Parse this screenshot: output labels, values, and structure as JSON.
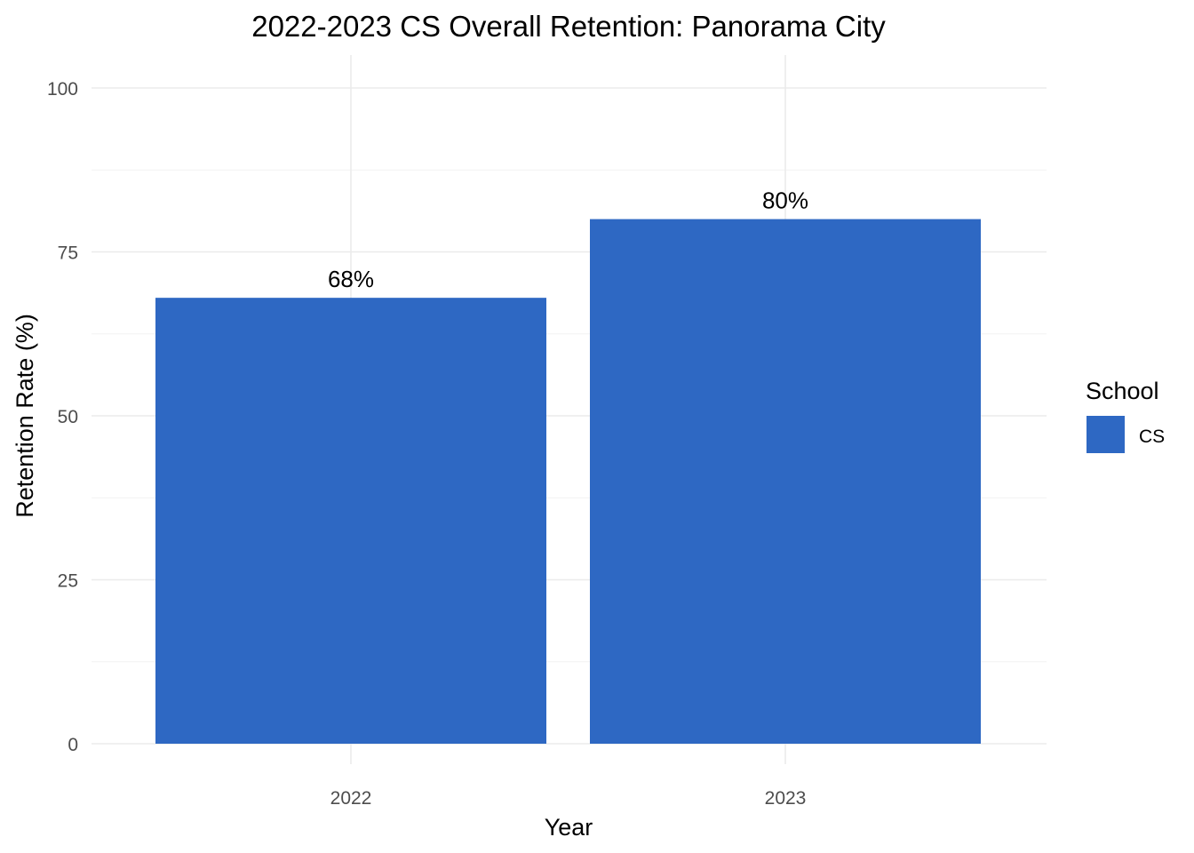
{
  "chart_data": {
    "type": "bar",
    "title": "2022-2023 CS Overall Retention: Panorama City",
    "xlabel": "Year",
    "ylabel": "Retention Rate (%)",
    "categories": [
      "2022",
      "2023"
    ],
    "series": [
      {
        "name": "CS",
        "values": [
          68,
          80
        ],
        "color": "#2e68c3"
      }
    ],
    "data_labels": [
      "68%",
      "80%"
    ],
    "ylim": [
      0,
      100
    ],
    "yticks": [
      0,
      25,
      50,
      75,
      100
    ],
    "grid": true,
    "legend": {
      "title": "School",
      "position": "right"
    }
  }
}
